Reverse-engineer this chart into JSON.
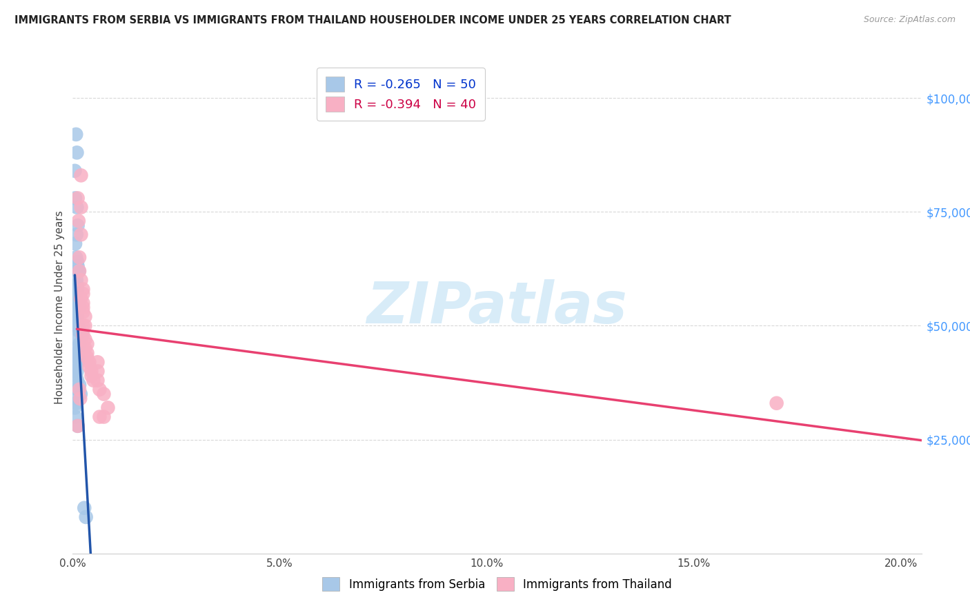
{
  "title": "IMMIGRANTS FROM SERBIA VS IMMIGRANTS FROM THAILAND HOUSEHOLDER INCOME UNDER 25 YEARS CORRELATION CHART",
  "source": "Source: ZipAtlas.com",
  "ylabel": "Householder Income Under 25 years",
  "xlim": [
    0.0,
    0.205
  ],
  "ylim": [
    0,
    108000
  ],
  "ylabel_vals": [
    25000,
    50000,
    75000,
    100000
  ],
  "ylabel_labels": [
    "$25,000",
    "$50,000",
    "$75,000",
    "$100,000"
  ],
  "xlabel_vals": [
    0.0,
    0.05,
    0.1,
    0.15,
    0.2
  ],
  "xlabel_labels": [
    "0.0%",
    "5.0%",
    "10.0%",
    "15.0%",
    "20.0%"
  ],
  "serbia_R": -0.265,
  "serbia_N": 50,
  "thailand_R": -0.394,
  "thailand_N": 40,
  "serbia_scatter_color": "#a8c8e8",
  "thailand_scatter_color": "#f8b0c4",
  "serbia_line_color": "#2255aa",
  "thailand_line_color": "#e84070",
  "serbia_dashed_color": "#b0c8e0",
  "grid_color": "#d8d8d8",
  "title_color": "#222222",
  "source_color": "#999999",
  "right_axis_color": "#4499ff",
  "bottom_axis_color": "#cccccc",
  "legend_text_color_1": "#0033cc",
  "legend_text_color_2": "#cc0044",
  "watermark_text": "ZIPatlas",
  "watermark_color": "#d8ecf8",
  "serbia_x": [
    0.0008,
    0.001,
    0.0005,
    0.0006,
    0.001,
    0.0012,
    0.0009,
    0.0006,
    0.0008,
    0.0011,
    0.0012,
    0.0015,
    0.0012,
    0.0009,
    0.001,
    0.0011,
    0.0009,
    0.0006,
    0.0013,
    0.0015,
    0.0009,
    0.0011,
    0.0009,
    0.001,
    0.0012,
    0.0016,
    0.0013,
    0.0023,
    0.0012,
    0.0016,
    0.0009,
    0.0012,
    0.0009,
    0.0013,
    0.0012,
    0.0009,
    0.0006,
    0.001,
    0.0008,
    0.0011,
    0.0016,
    0.0012,
    0.0019,
    0.0009,
    0.0008,
    0.0005,
    0.0006,
    0.0012,
    0.0028,
    0.0032
  ],
  "serbia_y": [
    92000,
    88000,
    84000,
    78000,
    76000,
    72000,
    70000,
    68000,
    65000,
    64000,
    63000,
    62000,
    62000,
    60000,
    59000,
    58000,
    57000,
    56000,
    55000,
    54000,
    53000,
    52000,
    51000,
    50000,
    50000,
    49000,
    49000,
    48000,
    47000,
    46000,
    45000,
    44000,
    44000,
    43000,
    42000,
    41000,
    40000,
    40000,
    39000,
    38000,
    37000,
    36000,
    35000,
    34000,
    33000,
    32000,
    30000,
    28000,
    10000,
    8000
  ],
  "thailand_x": [
    0.0012,
    0.0014,
    0.002,
    0.002,
    0.002,
    0.0016,
    0.0016,
    0.002,
    0.0025,
    0.0025,
    0.002,
    0.0025,
    0.0025,
    0.0025,
    0.003,
    0.0025,
    0.003,
    0.0025,
    0.003,
    0.0035,
    0.003,
    0.0035,
    0.0035,
    0.004,
    0.004,
    0.0045,
    0.0045,
    0.005,
    0.006,
    0.006,
    0.006,
    0.0065,
    0.0065,
    0.0075,
    0.0075,
    0.0085,
    0.0016,
    0.0018,
    0.0012,
    0.17
  ],
  "thailand_y": [
    78000,
    73000,
    83000,
    76000,
    70000,
    65000,
    62000,
    60000,
    58000,
    57000,
    56000,
    55000,
    54000,
    53000,
    52000,
    50000,
    50000,
    48000,
    47000,
    46000,
    45000,
    44000,
    43000,
    42000,
    41000,
    40000,
    39000,
    38000,
    42000,
    40000,
    38000,
    36000,
    30000,
    35000,
    30000,
    32000,
    36000,
    34000,
    28000,
    33000
  ],
  "serbia_line_x_start": 0.0005,
  "serbia_line_x_solid_end": 0.024,
  "serbia_line_x_dash_end": 0.085,
  "thailand_line_x_start": 0.001,
  "thailand_line_x_end": 0.205
}
